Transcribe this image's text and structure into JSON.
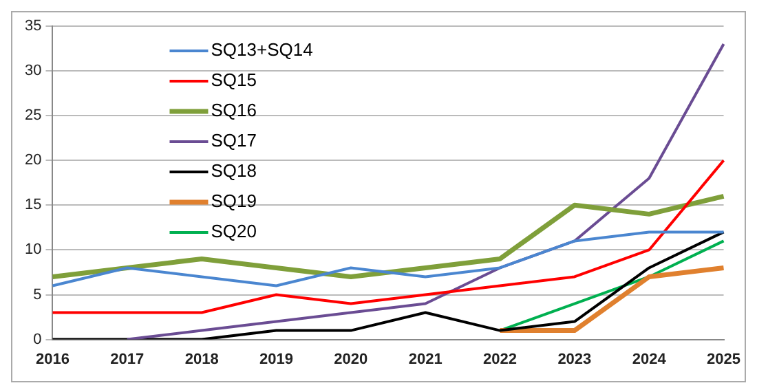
{
  "chart_data": {
    "type": "line",
    "categories": [
      "2016",
      "2017",
      "2018",
      "2019",
      "2020",
      "2021",
      "2022",
      "2023",
      "2024",
      "2025"
    ],
    "series": [
      {
        "name": "SQ13+SQ14",
        "color": "#4a86d0",
        "values": [
          6,
          8,
          7,
          6,
          8,
          7,
          8,
          11,
          12,
          12
        ]
      },
      {
        "name": "SQ15",
        "color": "#ff0000",
        "values": [
          3,
          3,
          3,
          5,
          4,
          5,
          6,
          7,
          10,
          20
        ]
      },
      {
        "name": "SQ16",
        "color": "#7f9f3a",
        "values": [
          7,
          8,
          9,
          8,
          7,
          8,
          9,
          15,
          14,
          16
        ]
      },
      {
        "name": "SQ17",
        "color": "#6a4c93",
        "values": [
          null,
          0,
          1,
          2,
          3,
          4,
          8,
          11,
          18,
          33
        ]
      },
      {
        "name": "SQ18",
        "color": "#000000",
        "values": [
          0,
          0,
          0,
          1,
          1,
          3,
          1,
          2,
          8,
          12
        ]
      },
      {
        "name": "SQ19",
        "color": "#e0802e",
        "values": [
          null,
          null,
          null,
          null,
          null,
          null,
          1,
          1,
          7,
          8
        ]
      },
      {
        "name": "SQ20",
        "color": "#00b050",
        "values": [
          null,
          null,
          null,
          null,
          null,
          null,
          1,
          4,
          7,
          11
        ]
      }
    ],
    "ylim": [
      0,
      35
    ],
    "yticks": [
      0,
      5,
      10,
      15,
      20,
      25,
      30,
      35
    ],
    "grid": "y",
    "legend": "top left",
    "marker": "none",
    "line_style": "solid"
  }
}
